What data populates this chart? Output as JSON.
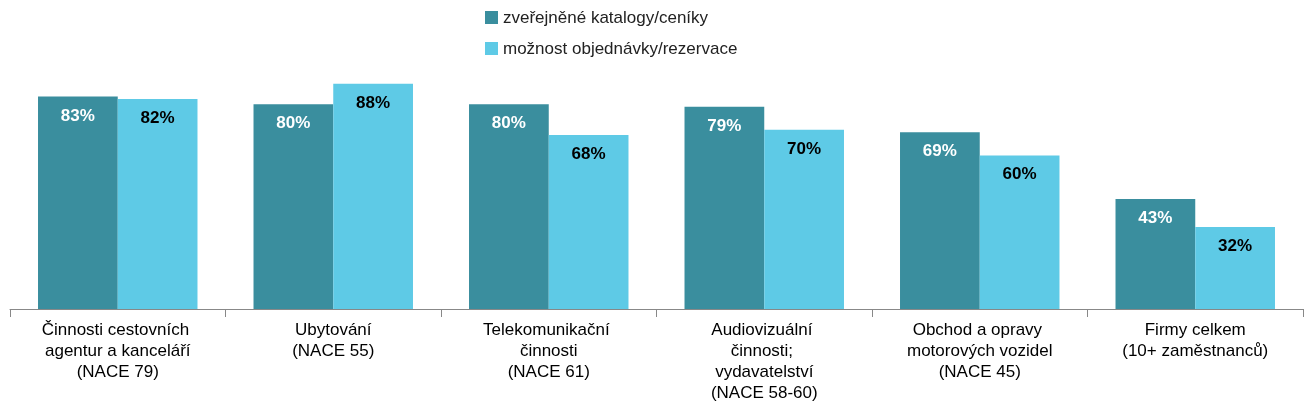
{
  "chart_data": {
    "type": "bar",
    "categories": [
      "Činnosti cestovních agentur a kanceláří (NACE 79)",
      "Ubytování (NACE 55)",
      "Telekomunikační činnosti (NACE 61)",
      "Audiovizuální činnosti; vydavatelství (NACE 58-60)",
      "Obchod a opravy motorových vozidel (NACE 45)",
      "Firmy celkem (10+ zaměstnanců)"
    ],
    "series": [
      {
        "name": "zveřejněné katalogy/ceníky",
        "color": "#3a8e9e",
        "values": [
          83,
          80,
          80,
          79,
          69,
          43
        ],
        "value_labels": [
          "83%",
          "80%",
          "80%",
          "79%",
          "69%",
          "43%"
        ]
      },
      {
        "name": "možnost objednávky/rezervace",
        "color": "#5ecae6",
        "values": [
          82,
          88,
          68,
          70,
          60,
          32
        ],
        "value_labels": [
          "82%",
          "88%",
          "68%",
          "70%",
          "60%",
          "32%"
        ]
      }
    ],
    "legend": "top",
    "tick_labels": "x"
  }
}
